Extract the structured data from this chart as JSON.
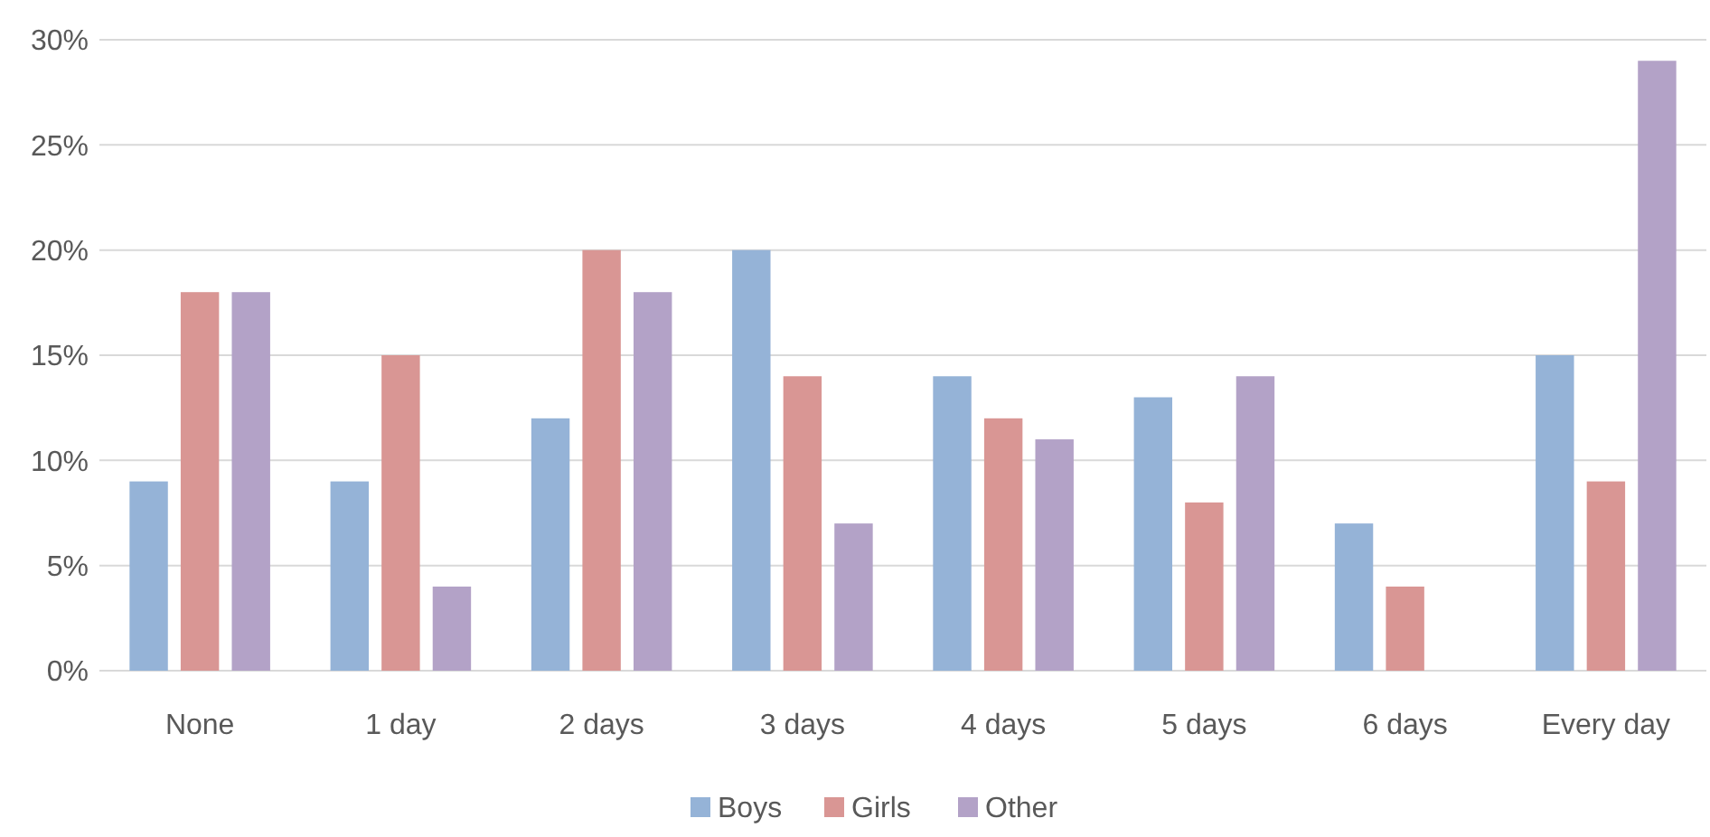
{
  "chart_data": {
    "type": "bar",
    "categories": [
      "None",
      "1 day",
      "2 days",
      "3 days",
      "4 days",
      "5 days",
      "6 days",
      "Every day"
    ],
    "series": [
      {
        "name": "Boys",
        "color": "#95b3d7",
        "values": [
          9,
          9,
          12,
          20,
          14,
          13,
          7,
          15
        ]
      },
      {
        "name": "Girls",
        "color": "#d99694",
        "values": [
          18,
          15,
          20,
          14,
          12,
          8,
          4,
          9
        ]
      },
      {
        "name": "Other",
        "color": "#b3a2c7",
        "values": [
          18,
          4,
          18,
          7,
          11,
          14,
          0,
          29
        ]
      }
    ],
    "ylim": [
      0,
      30
    ],
    "yticks": [
      {
        "value": 0,
        "label": "0%"
      },
      {
        "value": 5,
        "label": "5%"
      },
      {
        "value": 10,
        "label": "10%"
      },
      {
        "value": 15,
        "label": "15%"
      },
      {
        "value": 20,
        "label": "20%"
      },
      {
        "value": 25,
        "label": "25%"
      },
      {
        "value": 30,
        "label": "30%"
      }
    ],
    "grid": "y",
    "legend": "bottom"
  }
}
